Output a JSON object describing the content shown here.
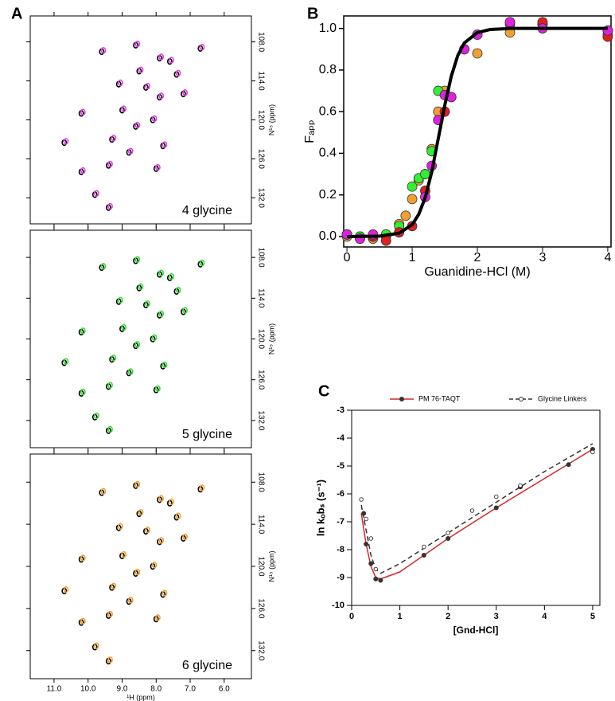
{
  "chart_data": [
    {
      "type": "scatter",
      "panel_label": "A",
      "annotation": "4 glycine",
      "annotation_color": "#e040e0",
      "ylabel": "N¹⁵ (ppm)",
      "xlim": [
        11.7,
        5.2
      ],
      "ylim": [
        136,
        104
      ],
      "xticks": [
        11,
        10,
        9,
        8,
        7,
        6
      ],
      "xtick_labels": false,
      "yticks": [
        {
          "value": 108,
          "label": "108.0"
        },
        {
          "value": 114,
          "label": "114.0"
        },
        {
          "value": 120,
          "label": "120.0"
        },
        {
          "value": 126,
          "label": "126.0"
        },
        {
          "value": 132,
          "label": "132.0"
        }
      ],
      "series": [
        {
          "color": "#000000",
          "marker": "peak",
          "x": [
            9.6,
            8.6,
            7.9,
            7.6,
            6.7,
            9.1,
            8.3,
            7.9,
            10.2,
            9.0,
            8.6,
            8.1,
            10.7,
            9.3,
            8.8,
            7.8,
            10.2,
            9.8,
            9.4,
            8.5,
            9.4,
            7.2,
            8.0,
            7.4
          ],
          "values": [
            109.5,
            108.5,
            110.5,
            111.0,
            109.0,
            114.5,
            115.0,
            116.5,
            119.0,
            118.5,
            121.0,
            120.0,
            123.5,
            123.0,
            125.0,
            124.0,
            128.0,
            131.5,
            133.5,
            112.5,
            127.0,
            116.0,
            127.5,
            113.0
          ]
        },
        {
          "color": "#e040e0",
          "marker": "peak",
          "x": [
            9.55,
            8.55,
            7.85,
            7.55,
            6.65,
            9.05,
            8.25,
            7.85,
            10.15,
            8.95,
            8.55,
            8.05,
            10.65,
            9.25,
            8.75,
            7.75,
            10.15,
            9.75,
            9.35,
            8.45,
            9.35,
            7.15,
            7.95,
            7.35
          ],
          "values": [
            109.3,
            108.3,
            110.3,
            110.8,
            108.8,
            114.3,
            114.8,
            116.3,
            118.8,
            118.3,
            120.8,
            119.8,
            123.3,
            122.8,
            124.8,
            123.8,
            127.8,
            131.3,
            133.3,
            112.3,
            126.8,
            115.8,
            127.3,
            112.8
          ]
        }
      ]
    },
    {
      "type": "scatter",
      "annotation": "5 glycine",
      "annotation_color": "#33dd33",
      "ylabel": "N¹⁵ (ppm)",
      "xlim": [
        11.7,
        5.2
      ],
      "ylim": [
        136,
        104
      ],
      "xticks": [
        11,
        10,
        9,
        8,
        7,
        6
      ],
      "xtick_labels": false,
      "yticks": [
        {
          "value": 108,
          "label": "108.0"
        },
        {
          "value": 114,
          "label": "114.0"
        },
        {
          "value": 120,
          "label": "120.0"
        },
        {
          "value": 126,
          "label": "126.0"
        },
        {
          "value": 132,
          "label": "132.0"
        }
      ],
      "series": [
        {
          "color": "#000000",
          "marker": "peak",
          "x": [
            9.6,
            8.6,
            7.9,
            7.6,
            6.7,
            9.1,
            8.3,
            7.9,
            10.2,
            9.0,
            8.6,
            8.1,
            10.7,
            9.3,
            8.8,
            7.8,
            10.2,
            9.8,
            9.4,
            8.5,
            9.4,
            7.2,
            8.0,
            7.4
          ],
          "values": [
            109.5,
            108.5,
            110.5,
            111.0,
            109.0,
            114.5,
            115.0,
            116.5,
            119.0,
            118.5,
            121.0,
            120.0,
            123.5,
            123.0,
            125.0,
            124.0,
            128.0,
            131.5,
            133.5,
            112.5,
            127.0,
            116.0,
            127.5,
            113.0
          ]
        },
        {
          "color": "#33dd33",
          "marker": "peak",
          "x": [
            9.55,
            8.55,
            7.85,
            7.55,
            6.65,
            9.05,
            8.25,
            7.85,
            10.15,
            8.95,
            8.55,
            8.05,
            10.65,
            9.25,
            8.75,
            7.75,
            10.15,
            9.75,
            9.35,
            8.45,
            9.35,
            7.15,
            7.95,
            7.35
          ],
          "values": [
            109.3,
            108.3,
            110.3,
            110.8,
            108.8,
            114.3,
            114.8,
            116.3,
            118.8,
            118.3,
            120.8,
            119.8,
            123.3,
            122.8,
            124.8,
            123.8,
            127.8,
            131.3,
            133.3,
            112.3,
            126.8,
            115.8,
            127.3,
            112.8
          ]
        }
      ]
    },
    {
      "type": "scatter",
      "annotation": "6 glycine",
      "annotation_color": "#f0a030",
      "xlabel": "¹H (ppm)",
      "ylabel": "N¹⁵ (ppm)",
      "xlim": [
        11.7,
        5.2
      ],
      "ylim": [
        136,
        104
      ],
      "xticks": [
        {
          "value": 11,
          "label": "11.0"
        },
        {
          "value": 10,
          "label": "10.0"
        },
        {
          "value": 9,
          "label": "9.0"
        },
        {
          "value": 8,
          "label": "8.0"
        },
        {
          "value": 7,
          "label": "7.0"
        },
        {
          "value": 6,
          "label": "6.0"
        }
      ],
      "xtick_labels": true,
      "yticks": [
        {
          "value": 108,
          "label": "108.0"
        },
        {
          "value": 114,
          "label": "114.0"
        },
        {
          "value": 120,
          "label": "120.0"
        },
        {
          "value": 126,
          "label": "126.0"
        },
        {
          "value": 132,
          "label": "132.0"
        }
      ],
      "series": [
        {
          "color": "#000000",
          "marker": "peak",
          "x": [
            9.6,
            8.6,
            7.9,
            7.6,
            6.7,
            9.1,
            8.3,
            7.9,
            10.2,
            9.0,
            8.6,
            8.1,
            10.7,
            9.3,
            8.8,
            7.8,
            10.2,
            9.8,
            9.4,
            8.5,
            9.4,
            7.2,
            8.0,
            7.4
          ],
          "values": [
            109.5,
            108.5,
            110.5,
            111.0,
            109.0,
            114.5,
            115.0,
            116.5,
            119.0,
            118.5,
            121.0,
            120.0,
            123.5,
            123.0,
            125.0,
            124.0,
            128.0,
            131.5,
            133.5,
            112.5,
            127.0,
            116.0,
            127.5,
            113.0
          ]
        },
        {
          "color": "#f0a030",
          "marker": "peak",
          "x": [
            9.55,
            8.55,
            7.85,
            7.55,
            6.65,
            9.05,
            8.25,
            7.85,
            10.15,
            8.95,
            8.55,
            8.05,
            10.65,
            9.25,
            8.75,
            7.75,
            10.15,
            9.75,
            9.35,
            8.45,
            9.35,
            7.15,
            7.95,
            7.35
          ],
          "values": [
            109.3,
            108.3,
            110.3,
            110.8,
            108.8,
            114.3,
            114.8,
            116.3,
            118.8,
            118.3,
            120.8,
            119.8,
            123.3,
            122.8,
            124.8,
            123.8,
            127.8,
            131.3,
            133.3,
            112.3,
            126.8,
            115.8,
            127.3,
            112.8
          ]
        }
      ]
    },
    {
      "type": "scatter",
      "panel_label": "B",
      "xlabel": "Guanidine-HCl (M)",
      "ylabel": "Fₐₚₚ",
      "xlim": [
        -0.05,
        4.05
      ],
      "ylim": [
        -0.05,
        1.06
      ],
      "xtick_labels": true,
      "xticks": [
        0,
        1,
        2,
        3,
        4
      ],
      "yticks": [
        {
          "value": 0,
          "label": "0.0"
        },
        0.2,
        0.4,
        0.6,
        0.8,
        {
          "value": 1,
          "label": "1.0"
        }
      ],
      "series": [
        {
          "color": "#f0a030",
          "marker": "circle",
          "x": [
            0,
            0.2,
            0.4,
            0.6,
            0.8,
            0.9,
            1.0,
            1.1,
            1.2,
            1.3,
            1.4,
            1.5,
            1.6,
            1.8,
            2.0,
            2.5,
            3.0,
            4.0
          ],
          "values": [
            0.0,
            0.0,
            -0.01,
            0.0,
            0.06,
            0.1,
            0.18,
            0.27,
            0.3,
            0.42,
            0.6,
            0.7,
            0.67,
            0.9,
            0.88,
            0.98,
            1.02,
            0.97
          ]
        },
        {
          "color": "#33ee33",
          "marker": "circle",
          "x": [
            0,
            0.2,
            0.4,
            0.6,
            0.8,
            1.0,
            1.1,
            1.2,
            1.3,
            1.4,
            2.0,
            2.5,
            3.0,
            4.0
          ],
          "values": [
            0.01,
            0.0,
            0.0,
            0.01,
            0.05,
            0.24,
            0.28,
            0.3,
            0.41,
            0.7,
            0.97,
            1.03,
            1.02,
            0.99
          ]
        },
        {
          "color": "#e02020",
          "marker": "circle",
          "x": [
            0,
            0.2,
            0.4,
            0.6,
            0.8,
            1.0,
            1.2,
            1.4,
            1.5,
            2.5,
            3.0,
            4.0
          ],
          "values": [
            0.01,
            -0.01,
            0.0,
            -0.02,
            0.02,
            0.05,
            0.22,
            0.56,
            0.6,
            1.02,
            1.03,
            0.96
          ]
        },
        {
          "color": "#e020e0",
          "marker": "circle",
          "x": [
            0,
            0.2,
            0.4,
            1.2,
            1.3,
            1.4,
            1.5,
            1.6,
            1.8,
            2.0,
            2.5,
            3.0,
            4.0
          ],
          "values": [
            0.01,
            -0.01,
            0.01,
            0.19,
            0.34,
            0.56,
            0.68,
            0.67,
            0.9,
            0.97,
            1.03,
            1.0,
            0.99
          ]
        },
        {
          "color": "#000000",
          "line": "solid",
          "width": 4,
          "x": [
            0,
            0.5,
            0.8,
            1.0,
            1.1,
            1.2,
            1.3,
            1.4,
            1.5,
            1.6,
            1.7,
            1.8,
            2.0,
            2.2,
            2.5,
            3.0,
            4.0
          ],
          "values": [
            0.0,
            0.002,
            0.016,
            0.057,
            0.106,
            0.187,
            0.31,
            0.47,
            0.63,
            0.77,
            0.87,
            0.93,
            0.98,
            0.995,
            1.0,
            1.0,
            1.0
          ]
        }
      ]
    },
    {
      "type": "line",
      "panel_label": "C",
      "xlabel": "[Gnd-HCl]",
      "ylabel": "ln kₒbₛ (s⁻¹)",
      "xlim": [
        0,
        5.15
      ],
      "ylim": [
        -10,
        -3
      ],
      "xtick_labels": true,
      "xticks": [
        0,
        1,
        2,
        3,
        4,
        5
      ],
      "yticks": [
        -10,
        -9,
        -8,
        -7,
        -6,
        -5,
        -4,
        -3
      ],
      "legend": "top",
      "series": [
        {
          "name": "PM 76-TAQT",
          "color": "#d62728",
          "line": "solid",
          "marker": "dot",
          "marker_color": "#333333",
          "x": [
            0.25,
            0.3,
            0.4,
            0.5,
            0.6,
            1.5,
            2.0,
            3.0,
            3.5,
            4.5,
            5.0
          ],
          "values": [
            -6.7,
            -7.8,
            -8.5,
            -9.05,
            -9.1,
            -8.2,
            -7.6,
            -6.5,
            -5.75,
            -4.95,
            -4.4
          ],
          "fit_x": [
            0.2,
            0.3,
            0.4,
            0.5,
            0.6,
            1.0,
            2.0,
            3.0,
            4.0,
            5.0
          ],
          "fit_values": [
            -6.7,
            -7.8,
            -8.6,
            -9.0,
            -9.05,
            -8.8,
            -7.6,
            -6.5,
            -5.45,
            -4.4
          ]
        },
        {
          "name": "Glycine Linkers",
          "color": "#333333",
          "line": "dashed",
          "marker": "open",
          "marker_color": "#333333",
          "x": [
            0.2,
            0.3,
            0.4,
            0.5,
            1.5,
            2.0,
            2.5,
            3.0,
            3.5,
            5.0
          ],
          "values": [
            -6.2,
            -6.9,
            -7.6,
            -8.7,
            -7.9,
            -7.4,
            -6.6,
            -6.1,
            -5.7,
            -4.5
          ],
          "fit_x": [
            0.2,
            0.3,
            0.4,
            0.5,
            0.6,
            1.0,
            2.0,
            3.0,
            4.0,
            5.0
          ],
          "fit_values": [
            -6.4,
            -7.3,
            -8.2,
            -8.7,
            -8.85,
            -8.5,
            -7.4,
            -6.3,
            -5.2,
            -4.2
          ]
        }
      ]
    }
  ]
}
